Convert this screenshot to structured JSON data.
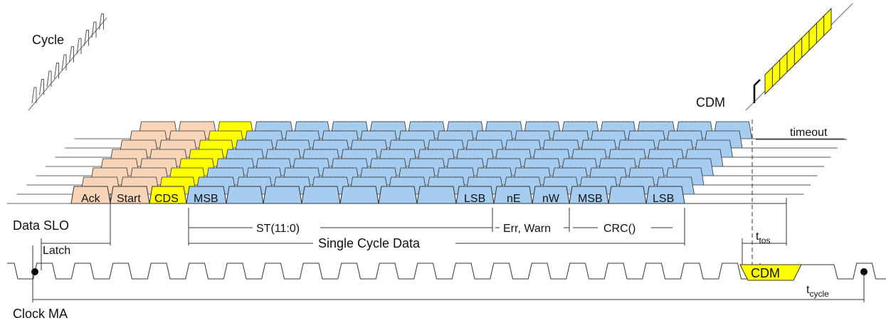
{
  "labels": {
    "cycle": "Cycle",
    "cdm_top": "CDM",
    "timeout": "timeout",
    "data_slo": "Data SLO",
    "latch": "Latch",
    "clock_ma": "Clock MA",
    "ttos_main": "t",
    "ttos_sub": "tos",
    "tcycle_main": "t",
    "tcycle_sub": "cycle",
    "cdm_bottom": "CDM"
  },
  "bits": {
    "ack": "Ack",
    "start": "Start",
    "cds": "CDS",
    "msb1": "MSB",
    "lsb1": "LSB",
    "ne": "nE",
    "nw": "nW",
    "msb2": "MSB",
    "lsb2": "LSB"
  },
  "groups": {
    "st": "ST(11:0)",
    "errwarn": "Err, Warn",
    "crc": "CRC()",
    "single_cycle": "Single Cycle Data"
  },
  "colors": {
    "ack_start": "#f8d4b9",
    "cds": "#ffff00",
    "data": "#a6ccf0",
    "outline": "#333333"
  }
}
